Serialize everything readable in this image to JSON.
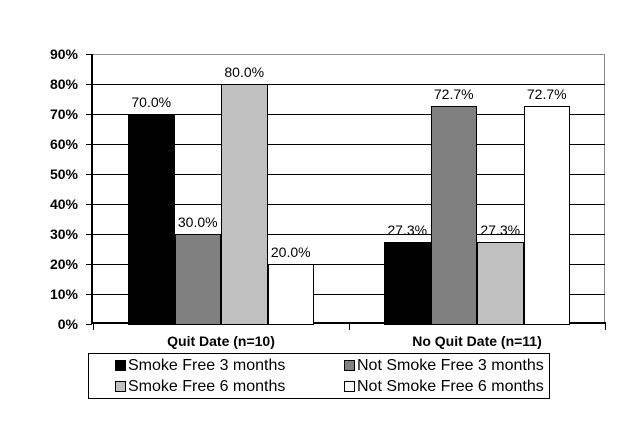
{
  "chart_data": {
    "type": "bar",
    "categories": [
      "Quit Date (n=10)",
      "No Quit Date (n=11)"
    ],
    "series": [
      {
        "name": "Smoke Free 3 months",
        "color": "#000000",
        "values": [
          70.0,
          27.3
        ]
      },
      {
        "name": "Not Smoke Free 3 months",
        "color": "#808080",
        "values": [
          30.0,
          72.7
        ]
      },
      {
        "name": "Smoke Free 6 months",
        "color": "#c0c0c0",
        "values": [
          80.0,
          27.3
        ]
      },
      {
        "name": "Not Smoke Free 6 months",
        "color": "#ffffff",
        "values": [
          20.0,
          72.7
        ]
      }
    ],
    "value_labels": [
      [
        "70.0%",
        "27.3%"
      ],
      [
        "30.0%",
        "72.7%"
      ],
      [
        "80.0%",
        "27.3%"
      ],
      [
        "20.0%",
        "72.7%"
      ]
    ],
    "y_axis": {
      "min": 0,
      "max": 90,
      "step": 10,
      "tick_labels": [
        "0%",
        "10%",
        "20%",
        "30%",
        "40%",
        "50%",
        "60%",
        "70%",
        "80%",
        "90%"
      ]
    },
    "grid": true,
    "legend_position": "bottom",
    "styles": {
      "bar_border": "#000000",
      "gridline": "#000000",
      "plot_border": "#8c8c8c",
      "axis": "#000000",
      "text": "#000000",
      "background": "#ffffff"
    }
  }
}
